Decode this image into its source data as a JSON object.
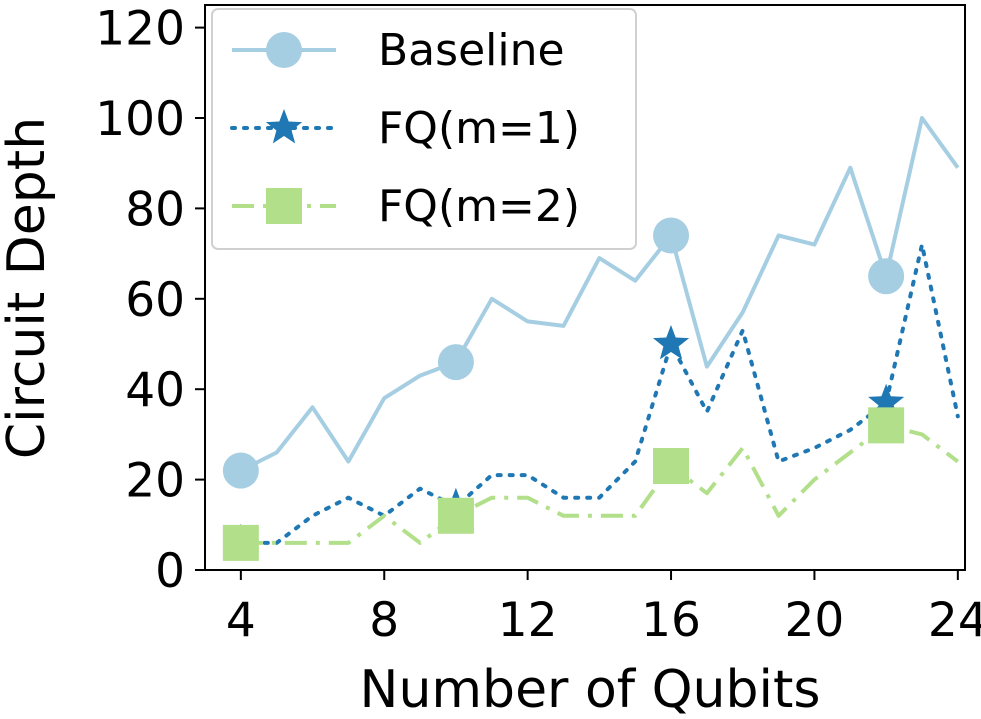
{
  "chart_data": {
    "type": "line",
    "title": "",
    "xlabel": "Number of Qubits",
    "ylabel": "Circuit Depth",
    "xlim": [
      3,
      24.2
    ],
    "ylim": [
      0,
      125
    ],
    "xticks": [
      4,
      8,
      12,
      16,
      20,
      24
    ],
    "yticks": [
      0,
      20,
      40,
      60,
      80,
      100,
      120
    ],
    "grid": false,
    "legend_position": "top-left",
    "series": [
      {
        "name": "Baseline",
        "color": "#a6cee3",
        "line_style": "solid",
        "marker": "circle",
        "x": [
          4,
          5,
          6,
          7,
          8,
          9,
          10,
          11,
          12,
          13,
          14,
          15,
          16,
          17,
          18,
          19,
          20,
          21,
          22,
          23,
          24
        ],
        "values": [
          22,
          26,
          36,
          24,
          38,
          43,
          46,
          60,
          55,
          54,
          69,
          64,
          74,
          45,
          57,
          74,
          72,
          89,
          65,
          100,
          89
        ],
        "marker_x": [
          4,
          10,
          16,
          22
        ]
      },
      {
        "name": "FQ(m=1)",
        "color": "#1f78b4",
        "line_style": "dotted",
        "marker": "star",
        "x": [
          4,
          5,
          6,
          7,
          8,
          9,
          10,
          11,
          12,
          13,
          14,
          15,
          16,
          17,
          18,
          19,
          20,
          21,
          22,
          23,
          24
        ],
        "values": [
          6,
          6,
          12,
          16,
          12,
          18,
          14,
          21,
          21,
          16,
          16,
          24,
          50,
          35,
          53,
          24,
          27,
          31,
          37,
          72,
          34
        ],
        "marker_x": [
          4,
          10,
          16,
          22
        ]
      },
      {
        "name": "FQ(m=2)",
        "color": "#b2df8a",
        "line_style": "dashdot",
        "marker": "square",
        "x": [
          4,
          5,
          6,
          7,
          8,
          9,
          10,
          11,
          12,
          13,
          14,
          15,
          16,
          17,
          18,
          19,
          20,
          21,
          22,
          23,
          24
        ],
        "values": [
          6,
          6,
          6,
          6,
          12,
          6,
          12,
          16,
          16,
          12,
          12,
          12,
          23,
          17,
          27,
          12,
          20,
          26,
          32,
          30,
          24
        ],
        "marker_x": [
          4,
          10,
          16,
          22
        ]
      }
    ]
  }
}
